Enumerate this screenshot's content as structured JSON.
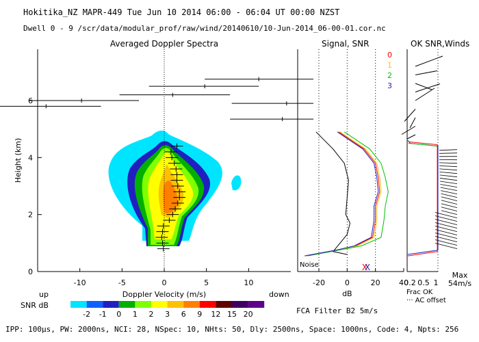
{
  "header": {
    "line1": "Hokitika_NZ  MAPR-449  Tue Jun 10 2014 06:00 - 06:04 UT 00:00 NZST",
    "line2": "Dwell  0 - 9   /scr/data/modular_prof/raw/wind/20140610/10-Jun-2014_06-00-01.cor.nc"
  },
  "chart_data": [
    {
      "type": "heatmap",
      "title": "Averaged Doppler Spectra",
      "xlabel": "Doppler Velocity (m/s)",
      "ylabel": "Height (km)",
      "xlim": [
        -15,
        15
      ],
      "ylim": [
        0,
        7.8
      ],
      "xticks": [
        -10,
        -5,
        0,
        5,
        10
      ],
      "yticks": [
        0,
        2,
        4,
        6
      ],
      "x_side_labels": {
        "left": "up",
        "right": "down"
      },
      "spectral_peaks": [
        {
          "height": 0.8,
          "velocity": -0.1
        },
        {
          "height": 1.0,
          "velocity": -0.2
        },
        {
          "height": 1.2,
          "velocity": -0.3
        },
        {
          "height": 1.4,
          "velocity": -0.2
        },
        {
          "height": 1.6,
          "velocity": -0.1
        },
        {
          "height": 1.8,
          "velocity": 0.6
        },
        {
          "height": 2.0,
          "velocity": 1.0
        },
        {
          "height": 2.2,
          "velocity": 1.3
        },
        {
          "height": 2.4,
          "velocity": 1.6
        },
        {
          "height": 2.6,
          "velocity": 1.8
        },
        {
          "height": 2.8,
          "velocity": 1.8
        },
        {
          "height": 3.0,
          "velocity": 1.6
        },
        {
          "height": 3.2,
          "velocity": 1.5
        },
        {
          "height": 3.4,
          "velocity": 1.5
        },
        {
          "height": 3.6,
          "velocity": 1.4
        },
        {
          "height": 3.8,
          "velocity": 1.2
        },
        {
          "height": 4.0,
          "velocity": 0.9
        },
        {
          "height": 4.2,
          "velocity": 0.8
        },
        {
          "height": 4.4,
          "velocity": 1.5
        }
      ],
      "upper_moments": [
        {
          "height": 6.75,
          "velocity": 11.2,
          "width_low": 4.8,
          "width_high": 18.0
        },
        {
          "height": 6.5,
          "velocity": 4.8,
          "width_low": -1.8,
          "width_high": 11.2
        },
        {
          "height": 6.2,
          "velocity": 1.0,
          "width_low": -5.3,
          "width_high": 7.8
        },
        {
          "height": 6.0,
          "velocity": -9.8,
          "width_low": -16.0,
          "width_high": -3.0
        },
        {
          "height": 5.9,
          "velocity": 14.5,
          "width_low": 8.0,
          "width_high": 20.5
        },
        {
          "height": 5.8,
          "velocity": -14.0,
          "width_low": -20.0,
          "width_high": -7.5
        },
        {
          "height": 5.35,
          "velocity": 14.0,
          "width_low": 7.8,
          "width_high": 20.0
        }
      ]
    },
    {
      "type": "line",
      "title": "Signal, SNR",
      "xlabel": "dB",
      "xlim": [
        -35,
        40
      ],
      "ylim": [
        0,
        7.8
      ],
      "xticks": [
        -20,
        0,
        20,
        40
      ],
      "noise_label": "Noise",
      "series": [
        {
          "name": "Signal",
          "color": "#000000",
          "points": [
            [
              0,
              0.6
            ],
            [
              -10,
              0.7
            ],
            [
              -5,
              1.0
            ],
            [
              0,
              1.3
            ],
            [
              2,
              1.7
            ],
            [
              -1,
              2.0
            ],
            [
              0,
              2.6
            ],
            [
              1,
              3.2
            ],
            [
              -2,
              3.8
            ],
            [
              -10,
              4.3
            ],
            [
              -18,
              4.7
            ],
            [
              -22,
              4.9
            ]
          ]
        },
        {
          "name": "SNR 0",
          "color": "#ff0000",
          "points": [
            [
              -30,
              0.55
            ],
            [
              -8,
              0.75
            ],
            [
              6,
              0.9
            ],
            [
              18,
              1.2
            ],
            [
              20,
              1.8
            ],
            [
              20,
              2.3
            ],
            [
              23,
              2.8
            ],
            [
              22,
              3.3
            ],
            [
              20,
              3.8
            ],
            [
              12,
              4.3
            ],
            [
              0,
              4.7
            ],
            [
              -6,
              4.9
            ]
          ]
        },
        {
          "name": "SNR 1",
          "color": "#ffc000",
          "points": [
            [
              -29,
              0.55
            ],
            [
              -7,
              0.75
            ],
            [
              7,
              0.9
            ],
            [
              19,
              1.2
            ],
            [
              21,
              1.8
            ],
            [
              21,
              2.3
            ],
            [
              24,
              2.8
            ],
            [
              23,
              3.3
            ],
            [
              21,
              3.8
            ],
            [
              13,
              4.3
            ],
            [
              1,
              4.7
            ],
            [
              -5,
              4.9
            ]
          ]
        },
        {
          "name": "SNR 2",
          "color": "#00c000",
          "points": [
            [
              -28,
              0.55
            ],
            [
              -6,
              0.75
            ],
            [
              10,
              0.9
            ],
            [
              24,
              1.2
            ],
            [
              26,
              1.8
            ],
            [
              27,
              2.3
            ],
            [
              29,
              2.8
            ],
            [
              27,
              3.3
            ],
            [
              24,
              3.8
            ],
            [
              16,
              4.3
            ],
            [
              4,
              4.7
            ],
            [
              -2,
              4.9
            ]
          ]
        },
        {
          "name": "SNR 3",
          "color": "#2020c0",
          "points": [
            [
              -30,
              0.55
            ],
            [
              -8,
              0.75
            ],
            [
              5,
              0.9
            ],
            [
              17,
              1.2
            ],
            [
              19,
              1.8
            ],
            [
              19,
              2.3
            ],
            [
              22,
              2.8
            ],
            [
              21,
              3.3
            ],
            [
              19,
              3.8
            ],
            [
              11,
              4.3
            ],
            [
              -1,
              4.7
            ],
            [
              -7,
              4.9
            ]
          ]
        }
      ]
    },
    {
      "type": "scatter",
      "title": "OK SNR,Winds",
      "legend": [
        {
          "label": "0",
          "color": "#ff0000"
        },
        {
          "label": "1",
          "color": "#ffc000"
        },
        {
          "label": "2",
          "color": "#00c000"
        },
        {
          "label": "3",
          "color": "#2020c0"
        }
      ],
      "xlim": [
        0,
        1
      ],
      "xticks": [
        0.5,
        1
      ],
      "extra_tick_labels": [
        "0.2",
        "0.5",
        "1"
      ],
      "scale_label_line1": "Max",
      "scale_label_line2": "54m/s",
      "foot1": "Frac OK",
      "foot2": "AC offset",
      "winds": [
        {
          "height": 7.2,
          "u": 1.0,
          "v": 0.5
        },
        {
          "height": 6.9,
          "u": 0.8,
          "v": 0.2
        },
        {
          "height": 6.6,
          "u": 0.6,
          "v": -0.3
        },
        {
          "height": 6.3,
          "u": 0.9,
          "v": 0.4
        },
        {
          "height": 6.0,
          "u": 0.7,
          "v": 0.6
        },
        {
          "height": 5.7,
          "u": -0.4,
          "v": -0.6
        },
        {
          "height": 5.4,
          "u": -0.2,
          "v": -0.5
        },
        {
          "height": 5.1,
          "u": -0.5,
          "v": -0.4
        },
        {
          "height": 4.8,
          "u": -0.3,
          "v": -0.2
        }
      ]
    }
  ],
  "colorbar": {
    "label": "SNR dB",
    "values": [
      "-2",
      "-1",
      "0",
      "1",
      "2",
      "3",
      "6",
      "9",
      "12",
      "15",
      "20"
    ],
    "colors": [
      "#00e5ff",
      "#1060ff",
      "#2020c0",
      "#00b000",
      "#80ff00",
      "#ffff00",
      "#ffc000",
      "#ff8000",
      "#ff0000",
      "#600000",
      "#400060",
      "#60008a"
    ]
  },
  "footer": {
    "filter": "FCA Filter B2  5m/s",
    "params": "IPP: 100μs,  PW: 2000ns,  NCI:  28,  NSpec: 10,  NHts: 50,  Dly: 2500ns,  Space: 1000ns,  Code: 4,  Npts: 256"
  }
}
